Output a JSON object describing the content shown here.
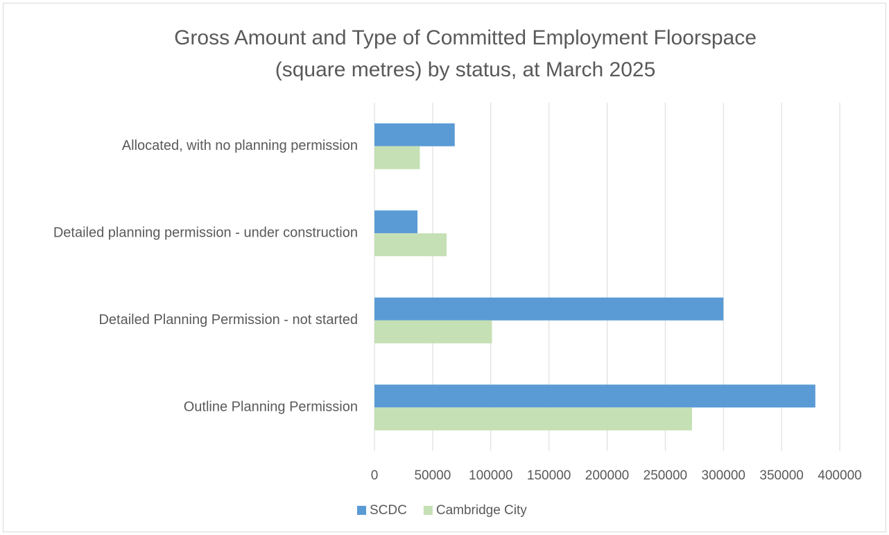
{
  "chart_data": {
    "type": "hbar",
    "title": [
      "Gross Amount and Type of Committed Employment Floorspace",
      "(square metres) by status, at March 2025"
    ],
    "categories": [
      "Allocated, with no planning permission",
      "Detailed planning permission - under construction",
      "Detailed Planning Permission - not started",
      "Outline Planning Permission"
    ],
    "series": [
      {
        "name": "SCDC",
        "color": "#5b9bd5",
        "values": [
          69000,
          37000,
          300000,
          379000
        ]
      },
      {
        "name": "Cambridge City",
        "color": "#c5e0b4",
        "values": [
          39000,
          62000,
          101000,
          273000
        ]
      }
    ],
    "xlim": [
      0,
      400000
    ],
    "xticks": [
      0,
      50000,
      100000,
      150000,
      200000,
      250000,
      300000,
      350000,
      400000
    ],
    "grid": true,
    "legend": "bottom"
  }
}
